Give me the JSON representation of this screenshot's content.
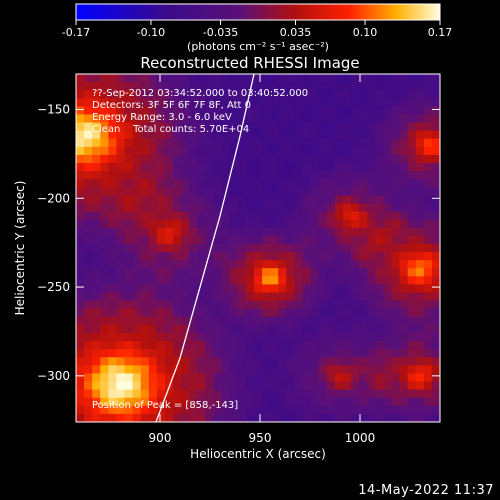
{
  "window": {
    "timestamp": "14-May-2022 11:37"
  },
  "colorbar": {
    "ticks": [
      "-0.17",
      "-0.10",
      "-0.035",
      "0.035",
      "0.10",
      "0.17"
    ],
    "tick_values": [
      -0.17,
      -0.1,
      -0.035,
      0.035,
      0.1,
      0.17
    ],
    "range": [
      -0.17,
      0.17
    ],
    "unit_label": "(photons cm⁻² s⁻¹ asec⁻²)"
  },
  "chart_data": {
    "type": "heatmap",
    "title": "Reconstructed RHESSI Image",
    "xlabel": "Heliocentric X (arcsec)",
    "ylabel": "Heliocentric Y (arcsec)",
    "xlim": [
      858,
      1040
    ],
    "ylim": [
      -326,
      -130
    ],
    "xticks": [
      900,
      950,
      1000
    ],
    "yticks": [
      -150,
      -200,
      -250,
      -300
    ],
    "annotations": [
      "??-Sep-2012 03:34:52.000 to 03:40:52.000",
      "Detectors: 3F 5F 6F 7F 8F, Att 0",
      "Energy Range: 3.0 - 6.0 keV",
      "Clean    Total counts: 5.70E+04"
    ],
    "peak_label": "Position of Peak = [858,-143]",
    "peak_position": [
      858,
      -143
    ],
    "limb_curve": [
      [
        898,
        -326
      ],
      [
        910,
        -290
      ],
      [
        920,
        -250
      ],
      [
        930,
        -210
      ],
      [
        940,
        -165
      ],
      [
        947,
        -130
      ]
    ],
    "sources": [
      {
        "x": 862,
        "y": -165,
        "strength": 0.16,
        "width": 28
      },
      {
        "x": 880,
        "y": -305,
        "strength": 0.17,
        "width": 30
      },
      {
        "x": 955,
        "y": -245,
        "strength": 0.12,
        "width": 14
      },
      {
        "x": 1030,
        "y": -240,
        "strength": 0.11,
        "width": 18
      },
      {
        "x": 1035,
        "y": -170,
        "strength": 0.09,
        "width": 14
      },
      {
        "x": 1030,
        "y": -300,
        "strength": 0.08,
        "width": 14
      },
      {
        "x": 995,
        "y": -210,
        "strength": 0.06,
        "width": 14
      },
      {
        "x": 905,
        "y": -220,
        "strength": 0.05,
        "width": 16
      },
      {
        "x": 990,
        "y": -300,
        "strength": 0.04,
        "width": 14
      }
    ],
    "background": -0.07
  }
}
